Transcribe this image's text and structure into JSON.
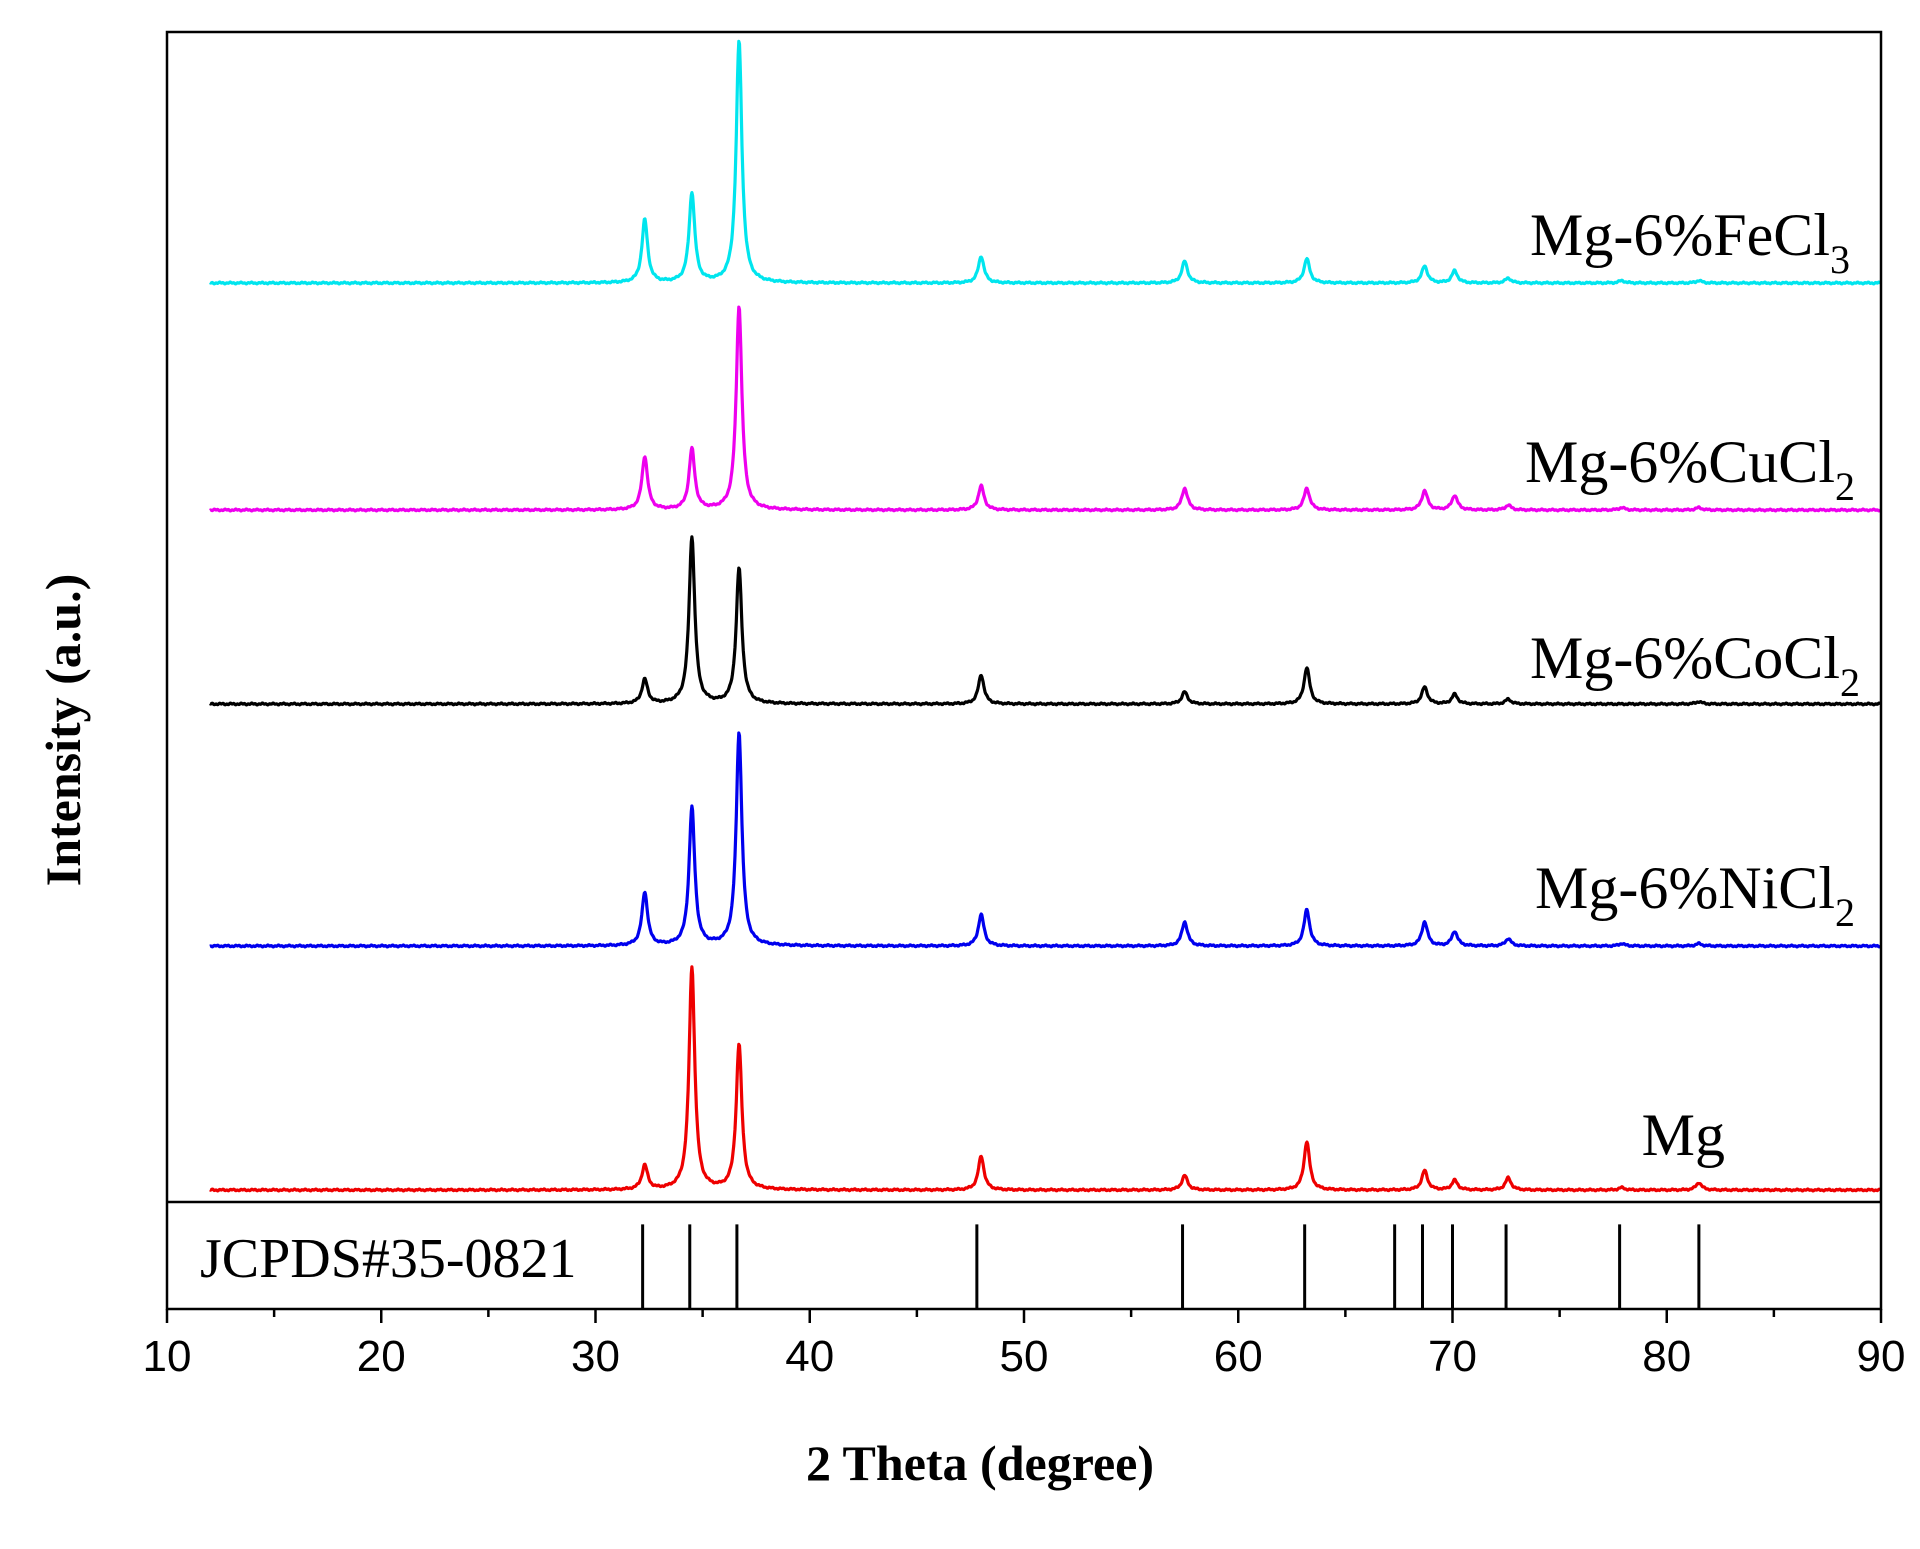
{
  "chart_data": {
    "type": "line",
    "xlabel": "2 Theta (degree)",
    "ylabel": "Intensity (a.u.)",
    "xlim": [
      10,
      90
    ],
    "x_ticks": [
      10,
      20,
      30,
      40,
      50,
      60,
      70,
      80,
      90
    ],
    "grid": false,
    "legend": "none",
    "series": [
      {
        "name": "Mg-6%FeCl",
        "subscript": "3",
        "color": "#00e5ee",
        "peaks": [
          [
            32.3,
            0.26
          ],
          [
            34.5,
            0.37
          ],
          [
            36.7,
            1.0
          ],
          [
            48.0,
            0.11
          ],
          [
            57.5,
            0.09
          ],
          [
            63.2,
            0.1
          ],
          [
            68.7,
            0.07
          ],
          [
            70.1,
            0.05
          ],
          [
            72.6,
            0.02
          ],
          [
            77.9,
            0.01
          ],
          [
            81.5,
            0.01
          ]
        ]
      },
      {
        "name": "Mg-6%CuCl",
        "subscript": "2",
        "color": "#ee00ee",
        "peaks": [
          [
            32.3,
            0.22
          ],
          [
            34.5,
            0.25
          ],
          [
            36.7,
            0.84
          ],
          [
            48.0,
            0.1
          ],
          [
            57.5,
            0.09
          ],
          [
            63.2,
            0.09
          ],
          [
            68.7,
            0.08
          ],
          [
            70.1,
            0.06
          ],
          [
            72.6,
            0.02
          ],
          [
            77.9,
            0.01
          ],
          [
            81.5,
            0.01
          ]
        ]
      },
      {
        "name": "Mg-6%CoCl",
        "subscript": "2",
        "color": "#000000",
        "peaks": [
          [
            32.3,
            0.1
          ],
          [
            34.5,
            0.69
          ],
          [
            36.7,
            0.56
          ],
          [
            48.0,
            0.12
          ],
          [
            57.5,
            0.05
          ],
          [
            63.2,
            0.15
          ],
          [
            68.7,
            0.07
          ],
          [
            70.1,
            0.04
          ],
          [
            72.6,
            0.02
          ],
          [
            81.5,
            0.01
          ]
        ]
      },
      {
        "name": "Mg-6%NiCl",
        "subscript": "2",
        "color": "#0000ee",
        "peaks": [
          [
            32.3,
            0.22
          ],
          [
            34.5,
            0.57
          ],
          [
            36.7,
            0.88
          ],
          [
            48.0,
            0.13
          ],
          [
            57.5,
            0.1
          ],
          [
            63.2,
            0.15
          ],
          [
            68.7,
            0.1
          ],
          [
            70.1,
            0.06
          ],
          [
            72.6,
            0.03
          ],
          [
            77.9,
            0.01
          ],
          [
            81.5,
            0.01
          ]
        ]
      },
      {
        "name": "Mg",
        "subscript": "",
        "color": "#ee0000",
        "peaks": [
          [
            32.3,
            0.1
          ],
          [
            34.5,
            0.92
          ],
          [
            36.7,
            0.6
          ],
          [
            48.0,
            0.14
          ],
          [
            57.5,
            0.06
          ],
          [
            63.2,
            0.2
          ],
          [
            68.7,
            0.08
          ],
          [
            70.1,
            0.04
          ],
          [
            72.6,
            0.05
          ],
          [
            77.9,
            0.01
          ],
          [
            81.5,
            0.03
          ]
        ]
      }
    ],
    "reference": {
      "label": "JCPDS#35-0821",
      "color": "#000000",
      "lines": [
        [
          32.2,
          0.9
        ],
        [
          34.4,
          0.9
        ],
        [
          36.6,
          0.9
        ],
        [
          47.8,
          0.9
        ],
        [
          57.4,
          0.9
        ],
        [
          63.1,
          0.9
        ],
        [
          67.3,
          0.9
        ],
        [
          68.6,
          0.9
        ],
        [
          70.0,
          0.9
        ],
        [
          72.5,
          0.9
        ],
        [
          77.8,
          0.9
        ],
        [
          81.5,
          0.9
        ]
      ]
    }
  }
}
